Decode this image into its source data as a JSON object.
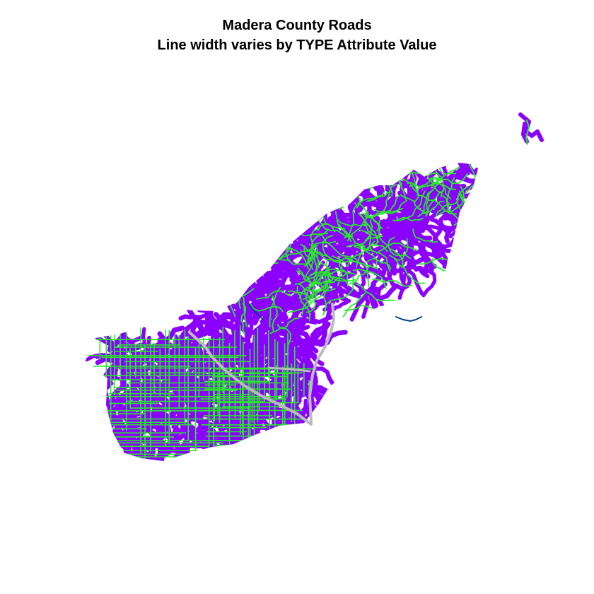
{
  "chart_data": {
    "type": "map",
    "title": "Madera County Roads",
    "subtitle": "Line width varies by TYPE Attribute Value",
    "colors": {
      "local_roads": "#8b00ff",
      "minor_roads": "#22ee22",
      "highway": "#bbbbbb",
      "river": "#00448a",
      "background": "#ffffff"
    }
  }
}
